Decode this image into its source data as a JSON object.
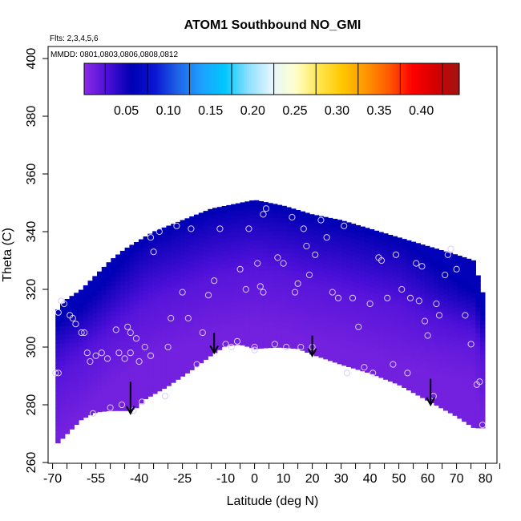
{
  "chart_data": {
    "type": "heatmap",
    "title": "ATOM1 Southbound NO_GMI",
    "flights_note": "Flts: 2,3,4,5,6",
    "dates_note": "MMDD: 0801,0803,0806,0808,0812",
    "xlabel": "Latitude (deg N)",
    "ylabel": "Theta (C)",
    "xlim": [
      -70,
      85
    ],
    "ylim": [
      260,
      404
    ],
    "x_ticks": [
      -70,
      -55,
      -40,
      -25,
      -10,
      0,
      10,
      20,
      30,
      40,
      50,
      60,
      70,
      80
    ],
    "y_ticks": [
      260,
      280,
      300,
      320,
      340,
      360,
      380,
      400
    ],
    "colorbar": {
      "range": [
        0.0,
        0.445
      ],
      "tick_values": [
        0.05,
        0.1,
        0.15,
        0.2,
        0.25,
        0.3,
        0.35,
        0.4
      ],
      "tick_labels": [
        "0.05",
        "0.10",
        "0.15",
        "0.20",
        "0.25",
        "0.30",
        "0.35",
        "0.40"
      ],
      "colors": [
        "#8a2be2",
        "#4b0fd8",
        "#0000b4",
        "#0a14d2",
        "#1e64e6",
        "#1ea0ff",
        "#00c8ff",
        "#8ce0ff",
        "#e6f6ff",
        "#ffffcc",
        "#ffe650",
        "#ffc800",
        "#ff9600",
        "#ff5a00",
        "#ff0000",
        "#d20000",
        "#a01414"
      ]
    },
    "field": {
      "lat_range": [
        -69,
        79
      ],
      "lower_boundary": [
        [
          -69,
          266
        ],
        [
          -66,
          269
        ],
        [
          -60,
          275
        ],
        [
          -55,
          277.5
        ],
        [
          -50,
          278
        ],
        [
          -44,
          278
        ],
        [
          -41,
          279
        ],
        [
          -38,
          282
        ],
        [
          -30,
          286.5
        ],
        [
          -22,
          292
        ],
        [
          -18,
          295
        ],
        [
          -14,
          298
        ],
        [
          -10,
          300.5
        ],
        [
          -5,
          301
        ],
        [
          0,
          299.5
        ],
        [
          8,
          300
        ],
        [
          15,
          299.5
        ],
        [
          20,
          297.5
        ],
        [
          30,
          294
        ],
        [
          40,
          291
        ],
        [
          50,
          287
        ],
        [
          60,
          281.5
        ],
        [
          70,
          276
        ],
        [
          76,
          272
        ],
        [
          79,
          272
        ]
      ],
      "upper_boundary": [
        [
          -69,
          312
        ],
        [
          -66,
          316
        ],
        [
          -60,
          320
        ],
        [
          -55,
          325
        ],
        [
          -50,
          330
        ],
        [
          -45,
          334
        ],
        [
          -40,
          337
        ],
        [
          -35,
          340
        ],
        [
          -30,
          342
        ],
        [
          -25,
          344
        ],
        [
          -20,
          346
        ],
        [
          -15,
          348
        ],
        [
          -10,
          349
        ],
        [
          -5,
          350
        ],
        [
          0,
          351
        ],
        [
          5,
          350
        ],
        [
          10,
          349
        ],
        [
          20,
          346
        ],
        [
          30,
          344
        ],
        [
          40,
          341
        ],
        [
          50,
          338
        ],
        [
          60,
          335
        ],
        [
          70,
          332
        ],
        [
          76,
          330
        ],
        [
          79,
          319
        ]
      ]
    },
    "observations": [
      [
        -69,
        291
      ],
      [
        -68,
        291
      ],
      [
        -68,
        312
      ],
      [
        -67,
        316
      ],
      [
        -66,
        315
      ],
      [
        -64,
        311
      ],
      [
        -63,
        310
      ],
      [
        -62,
        308
      ],
      [
        -60,
        305
      ],
      [
        -59,
        305
      ],
      [
        -58,
        298
      ],
      [
        -57,
        295
      ],
      [
        -56,
        277
      ],
      [
        -55,
        297
      ],
      [
        -53,
        298
      ],
      [
        -51,
        296
      ],
      [
        -50,
        279
      ],
      [
        -48,
        306
      ],
      [
        -47,
        298
      ],
      [
        -46,
        280
      ],
      [
        -45,
        296
      ],
      [
        -44,
        307
      ],
      [
        -43,
        298
      ],
      [
        -43,
        305
      ],
      [
        -42,
        278
      ],
      [
        -41,
        303
      ],
      [
        -40,
        295
      ],
      [
        -39,
        281
      ],
      [
        -38,
        300
      ],
      [
        -36,
        297
      ],
      [
        -36,
        338
      ],
      [
        -35,
        333
      ],
      [
        -33,
        340
      ],
      [
        -31,
        283
      ],
      [
        -30,
        300
      ],
      [
        -29,
        310
      ],
      [
        -27,
        342
      ],
      [
        -25,
        319
      ],
      [
        -23,
        310
      ],
      [
        -22,
        341
      ],
      [
        -20,
        294
      ],
      [
        -18,
        305
      ],
      [
        -16,
        318
      ],
      [
        -14,
        323
      ],
      [
        -12,
        341
      ],
      [
        -10,
        301
      ],
      [
        -8,
        300
      ],
      [
        -6,
        302
      ],
      [
        -5,
        327
      ],
      [
        -3,
        320
      ],
      [
        -2,
        341
      ],
      [
        0,
        300
      ],
      [
        0,
        299
      ],
      [
        1,
        329
      ],
      [
        2,
        321
      ],
      [
        3,
        319
      ],
      [
        3,
        346
      ],
      [
        4,
        348
      ],
      [
        7,
        301
      ],
      [
        8,
        331
      ],
      [
        10,
        329
      ],
      [
        11,
        300
      ],
      [
        13,
        345
      ],
      [
        14,
        319
      ],
      [
        15,
        322
      ],
      [
        16,
        300
      ],
      [
        17,
        341
      ],
      [
        18,
        335
      ],
      [
        19,
        325
      ],
      [
        20,
        300
      ],
      [
        21,
        332
      ],
      [
        23,
        344
      ],
      [
        25,
        338
      ],
      [
        27,
        319
      ],
      [
        29,
        317
      ],
      [
        31,
        342
      ],
      [
        32,
        291
      ],
      [
        34,
        317
      ],
      [
        36,
        307
      ],
      [
        38,
        293
      ],
      [
        40,
        315
      ],
      [
        41,
        291
      ],
      [
        43,
        331
      ],
      [
        44,
        330
      ],
      [
        46,
        317
      ],
      [
        48,
        294
      ],
      [
        49,
        332
      ],
      [
        51,
        320
      ],
      [
        53,
        291
      ],
      [
        54,
        317
      ],
      [
        56,
        329
      ],
      [
        57,
        316
      ],
      [
        58,
        328
      ],
      [
        59,
        309
      ],
      [
        60,
        304
      ],
      [
        62,
        283
      ],
      [
        63,
        315
      ],
      [
        64,
        311
      ],
      [
        66,
        325
      ],
      [
        67,
        332
      ],
      [
        68,
        334
      ],
      [
        70,
        327
      ],
      [
        73,
        311
      ],
      [
        75,
        301
      ],
      [
        77,
        287
      ],
      [
        78,
        288
      ],
      [
        79,
        273
      ]
    ],
    "arrows": [
      [
        -43,
        288,
        277
      ],
      [
        -14,
        305,
        298
      ],
      [
        20,
        304,
        297
      ],
      [
        61,
        289,
        280
      ]
    ]
  }
}
